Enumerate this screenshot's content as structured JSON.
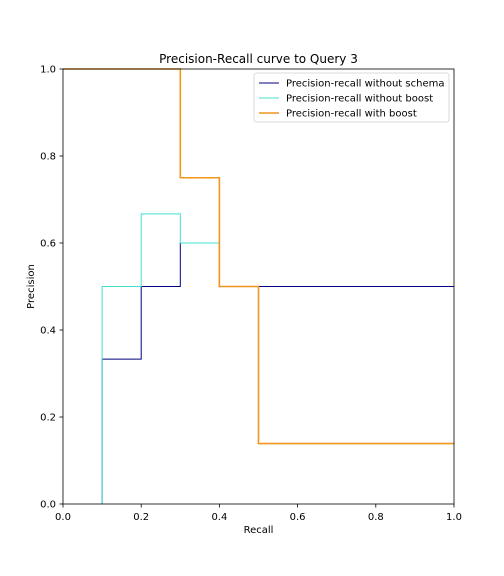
{
  "chart_data": {
    "type": "line",
    "title": "Precision-Recall curve to Query 3",
    "xlabel": "Recall",
    "ylabel": "Precision",
    "xlim": [
      0.0,
      1.0
    ],
    "ylim": [
      0.0,
      1.0
    ],
    "xticks": [
      "0.0",
      "0.2",
      "0.4",
      "0.6",
      "0.8",
      "1.0"
    ],
    "yticks": [
      "0.0",
      "0.2",
      "0.4",
      "0.6",
      "0.8",
      "1.0"
    ],
    "grid": false,
    "legend_position": "top-right",
    "series": [
      {
        "name": "Precision-recall without schema",
        "color": "#000080",
        "points": [
          [
            0.1,
            0.0
          ],
          [
            0.1,
            0.333
          ],
          [
            0.2,
            0.333
          ],
          [
            0.2,
            0.5
          ],
          [
            0.3,
            0.5
          ],
          [
            0.3,
            0.6
          ],
          [
            0.4,
            0.6
          ],
          [
            0.4,
            0.5
          ],
          [
            1.0,
            0.5
          ]
        ]
      },
      {
        "name": "Precision-recall without boost",
        "color": "#40e0d0",
        "points": [
          [
            0.1,
            0.0
          ],
          [
            0.1,
            0.5
          ],
          [
            0.2,
            0.5
          ],
          [
            0.2,
            0.667
          ],
          [
            0.3,
            0.667
          ],
          [
            0.3,
            0.6
          ],
          [
            0.4,
            0.6
          ],
          [
            0.4,
            0.5
          ],
          [
            0.5,
            0.5
          ]
        ]
      },
      {
        "name": "Precision-recall with boost",
        "color": "#f0961e",
        "points": [
          [
            0.0,
            1.0
          ],
          [
            0.3,
            1.0
          ],
          [
            0.3,
            0.75
          ],
          [
            0.4,
            0.75
          ],
          [
            0.4,
            0.5
          ],
          [
            0.5,
            0.5
          ],
          [
            0.5,
            0.1389
          ],
          [
            1.0,
            0.1389
          ]
        ]
      }
    ]
  }
}
